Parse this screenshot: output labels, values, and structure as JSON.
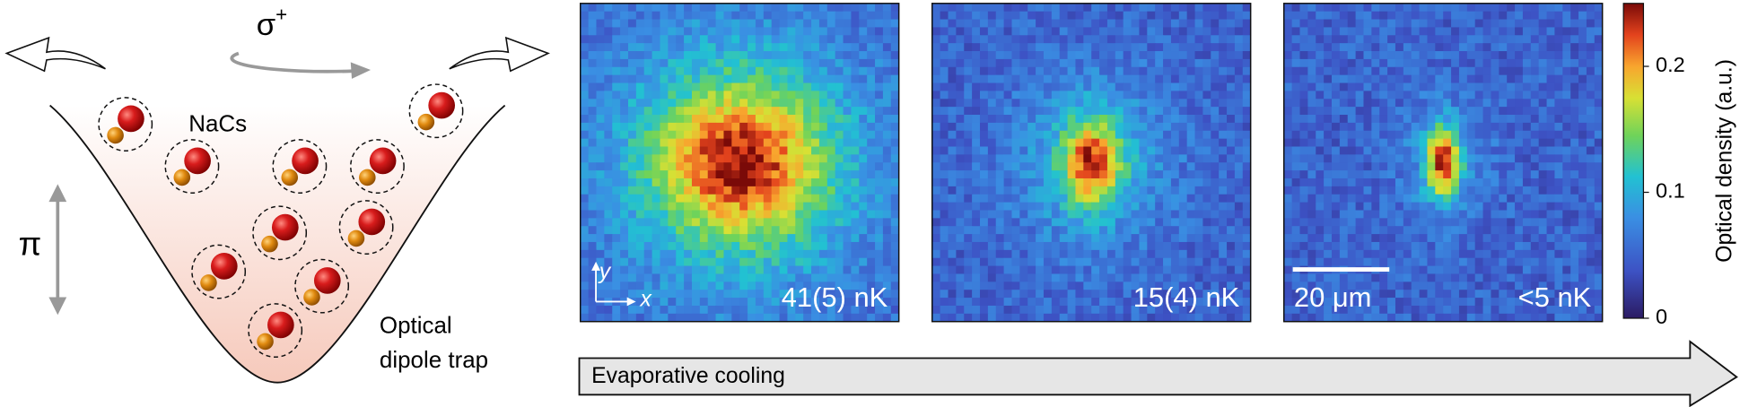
{
  "diagram": {
    "polarization": {
      "symbol": "σ",
      "superscript": "+"
    },
    "molecule_label": "NaCs",
    "pi_label": "π",
    "trap_label": [
      "Optical",
      "dipole trap"
    ]
  },
  "panels": [
    {
      "temperature": "41(5) nK",
      "axis_y": "y",
      "axis_x": "x"
    },
    {
      "temperature": "15(4) nK"
    },
    {
      "temperature": "<5 nK",
      "scale_bar": "20 μm"
    }
  ],
  "colorbar": {
    "label": "Optical density (a.u.)",
    "lim": [
      0,
      0.25
    ],
    "ticks": [
      0,
      0.1,
      0.2
    ]
  },
  "arrow_label": "Evaporative cooling"
}
